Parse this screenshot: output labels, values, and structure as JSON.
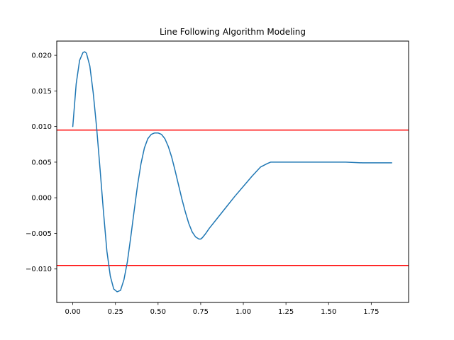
{
  "chart_data": {
    "type": "line",
    "title": "Line Following Algorithm Modeling",
    "xlabel": "",
    "ylabel": "",
    "xlim": [
      -0.094,
      1.969
    ],
    "ylim": [
      -0.0147,
      0.022
    ],
    "xticks": [
      0.0,
      0.25,
      0.5,
      0.75,
      1.0,
      1.25,
      1.5,
      1.75
    ],
    "xtick_labels": [
      "0.00",
      "0.25",
      "0.50",
      "0.75",
      "1.00",
      "1.25",
      "1.50",
      "1.75"
    ],
    "yticks": [
      -0.01,
      -0.005,
      0.0,
      0.005,
      0.01,
      0.015,
      0.02
    ],
    "ytick_labels": [
      "−0.010",
      "−0.005",
      "0.000",
      "0.005",
      "0.010",
      "0.015",
      "0.020"
    ],
    "grid": false,
    "series": [
      {
        "color": "#1f77b4",
        "x": [
          0.0,
          0.02,
          0.04,
          0.06,
          0.07,
          0.08,
          0.1,
          0.12,
          0.14,
          0.16,
          0.18,
          0.2,
          0.22,
          0.24,
          0.26,
          0.28,
          0.3,
          0.32,
          0.34,
          0.36,
          0.38,
          0.4,
          0.42,
          0.44,
          0.46,
          0.48,
          0.5,
          0.51,
          0.52,
          0.54,
          0.56,
          0.58,
          0.6,
          0.62,
          0.64,
          0.66,
          0.68,
          0.7,
          0.72,
          0.74,
          0.75,
          0.76,
          0.78,
          0.8,
          0.85,
          0.9,
          0.95,
          1.0,
          1.05,
          1.1,
          1.14,
          1.16,
          1.18,
          1.2,
          1.3,
          1.4,
          1.5,
          1.6,
          1.7,
          1.8,
          1.87
        ],
        "y": [
          0.01,
          0.016,
          0.0193,
          0.0204,
          0.0205,
          0.0203,
          0.0185,
          0.0147,
          0.0098,
          0.004,
          -0.002,
          -0.0075,
          -0.011,
          -0.0128,
          -0.0132,
          -0.013,
          -0.0115,
          -0.009,
          -0.0055,
          -0.0018,
          0.0018,
          0.0048,
          0.007,
          0.0083,
          0.0089,
          0.0091,
          0.0091,
          0.009,
          0.0089,
          0.0083,
          0.0072,
          0.0057,
          0.0038,
          0.0018,
          -0.0002,
          -0.002,
          -0.0036,
          -0.0048,
          -0.0055,
          -0.0058,
          -0.0058,
          -0.0056,
          -0.005,
          -0.0043,
          -0.0028,
          -0.0013,
          0.0002,
          0.0016,
          0.003,
          0.0043,
          0.0048,
          0.005,
          0.005,
          0.005,
          0.005,
          0.005,
          0.005,
          0.005,
          0.0049,
          0.0049,
          0.0049
        ]
      }
    ],
    "reference_lines": [
      {
        "orientation": "horizontal",
        "y": 0.0095,
        "color": "#ff0000"
      },
      {
        "orientation": "horizontal",
        "y": -0.0095,
        "color": "#ff0000"
      }
    ]
  }
}
